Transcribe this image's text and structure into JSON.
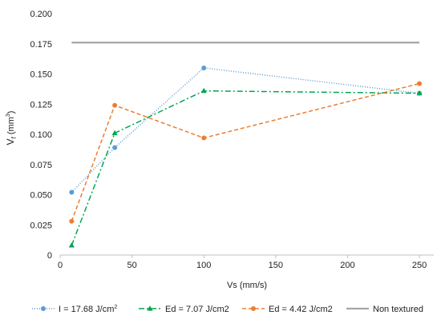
{
  "chart_data": {
    "type": "line",
    "title": "",
    "xlabel": "Vs (mm/s)",
    "ylabel_main": "V",
    "ylabel_sub": "f",
    "ylabel_unit_open": " (mm",
    "ylabel_unit_sup": "3",
    "ylabel_unit_close": ")",
    "xlim": [
      0,
      260
    ],
    "ylim": [
      0,
      0.2
    ],
    "xticks": [
      0,
      50,
      100,
      150,
      200,
      250
    ],
    "xtick_labels": [
      "0",
      "50",
      "100",
      "150",
      "200",
      "250"
    ],
    "yticks": [
      0,
      0.025,
      0.05,
      0.075,
      0.1,
      0.125,
      0.15,
      0.175,
      0.2
    ],
    "ytick_labels": [
      "0",
      "0.025",
      "0.050",
      "0.075",
      "0.100",
      "0.125",
      "0.150",
      "0.175",
      "0.200"
    ],
    "grid": false,
    "legend_position": "bottom",
    "series": [
      {
        "label_main": "I = 17.68 J/cm",
        "label_sup": "2",
        "color": "#5b9bd5",
        "marker": "circle",
        "dash": "1,2",
        "x": [
          8,
          38,
          100,
          250
        ],
        "y": [
          0.052,
          0.089,
          0.155,
          0.134
        ]
      },
      {
        "label_main": "Ed = 7.07 J/cm2",
        "label_sup": "",
        "color": "#00a651",
        "marker": "triangle",
        "dash": "7,3,2,3",
        "x": [
          8,
          38,
          100,
          250
        ],
        "y": [
          0.008,
          0.101,
          0.136,
          0.134
        ]
      },
      {
        "label_main": "Ed = 4.42 J/cm2",
        "label_sup": "",
        "color": "#ed7d31",
        "marker": "circle",
        "dash": "5,3",
        "x": [
          8,
          38,
          100,
          250
        ],
        "y": [
          0.028,
          0.124,
          0.097,
          0.142
        ]
      },
      {
        "label_main": "Non textured",
        "label_sup": "",
        "color": "#a5a5a5",
        "marker": "none",
        "dash": "",
        "x": [
          8,
          250
        ],
        "y": [
          0.176,
          0.176
        ]
      }
    ]
  }
}
